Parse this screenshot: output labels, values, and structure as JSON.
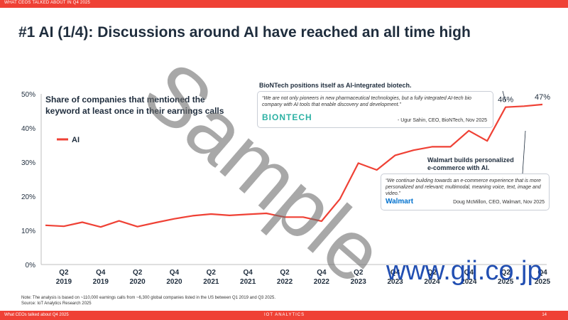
{
  "header": {
    "strip_text": "WHAT CEOS TALKED ABOUT IN Q4 2025"
  },
  "title": "#1 AI  (1/4): Discussions around AI have reached an all time high",
  "chart_data": {
    "type": "line",
    "title": "Share of companies that mentioned the keyword at least once in their earnings calls",
    "title_lines": [
      "Share of companies that mentioned the",
      "keyword at least once in their earnings calls"
    ],
    "y_ticks": [
      "0%",
      "10%",
      "20%",
      "30%",
      "40%",
      "50%"
    ],
    "ylim": [
      0,
      50
    ],
    "x_tick_labels": [
      [
        "Q2",
        "2019"
      ],
      [
        "Q4",
        "2019"
      ],
      [
        "Q2",
        "2020"
      ],
      [
        "Q4",
        "2020"
      ],
      [
        "Q2",
        "2021"
      ],
      [
        "Q4",
        "2021"
      ],
      [
        "Q2",
        "2022"
      ],
      [
        "Q4",
        "2022"
      ],
      [
        "Q2",
        "2023"
      ],
      [
        "Q4",
        "2023"
      ],
      [
        "Q2",
        "2024"
      ],
      [
        "Q4",
        "2024"
      ],
      [
        "Q2",
        "2025"
      ],
      [
        "Q4",
        "2025"
      ]
    ],
    "x": [
      "Q1 2019",
      "Q2 2019",
      "Q3 2019",
      "Q4 2019",
      "Q1 2020",
      "Q2 2020",
      "Q3 2020",
      "Q4 2020",
      "Q1 2021",
      "Q2 2021",
      "Q3 2021",
      "Q4 2021",
      "Q1 2022",
      "Q2 2022",
      "Q3 2022",
      "Q4 2022",
      "Q1 2023",
      "Q2 2023",
      "Q3 2023",
      "Q4 2023",
      "Q1 2024",
      "Q2 2024",
      "Q3 2024",
      "Q4 2024",
      "Q1 2025",
      "Q2 2025",
      "Q3 2025",
      "Q4 2025"
    ],
    "series": [
      {
        "name": "AI",
        "color": "#ef4135",
        "values": [
          11.5,
          11.2,
          12.4,
          11.0,
          12.8,
          11.1,
          12.3,
          13.4,
          14.3,
          14.8,
          14.4,
          14.7,
          15.0,
          13.9,
          13.9,
          12.7,
          19.2,
          29.7,
          27.7,
          32.0,
          33.5,
          34.5,
          34.5,
          39.2,
          36.2,
          46.1,
          46.4,
          46.9
        ]
      }
    ],
    "data_labels": [
      {
        "index": 25,
        "text": "46%"
      },
      {
        "index": 27,
        "text": "47%"
      }
    ],
    "legend": "left",
    "grid": false
  },
  "callouts": [
    {
      "title": "BioNTech positions itself as AI-integrated biotech.",
      "quote": "“We are not only pioneers in new pharmaceutical technologies, but a fully integrated AI-tech bio company with AI tools that enable discovery and development.”",
      "attribution": "- Ugur Sahin, CEO, BioNTech, Nov 2025",
      "logo_text": "BIONTECH"
    },
    {
      "title": "Walmart builds personalized e-commerce with AI.",
      "title_lines": [
        "Walmart builds personalized",
        "e-commerce with AI."
      ],
      "quote": "“We continue building towards an e-commerce experience that is more personalized and relevant; multimodal, meaning voice, text, image and video.”",
      "attribution": "Doug McMillon, CEO, Walmart, Nov 2025",
      "logo_text": "Walmart"
    }
  ],
  "note": {
    "line1": "Note: The analysis is based on ~110,000 earnings calls from ~6,300 global companies listed in the US between Q1 2019 and Q3 2025.",
    "line2": "Source: IoT Analytics Research 2025"
  },
  "footer": {
    "left": "What CEOs talked about Q4 2025",
    "brand": "IOT ANALYTICS",
    "page": "14"
  },
  "watermark": {
    "text": "Sample",
    "url": "www.gii.co.jp"
  }
}
